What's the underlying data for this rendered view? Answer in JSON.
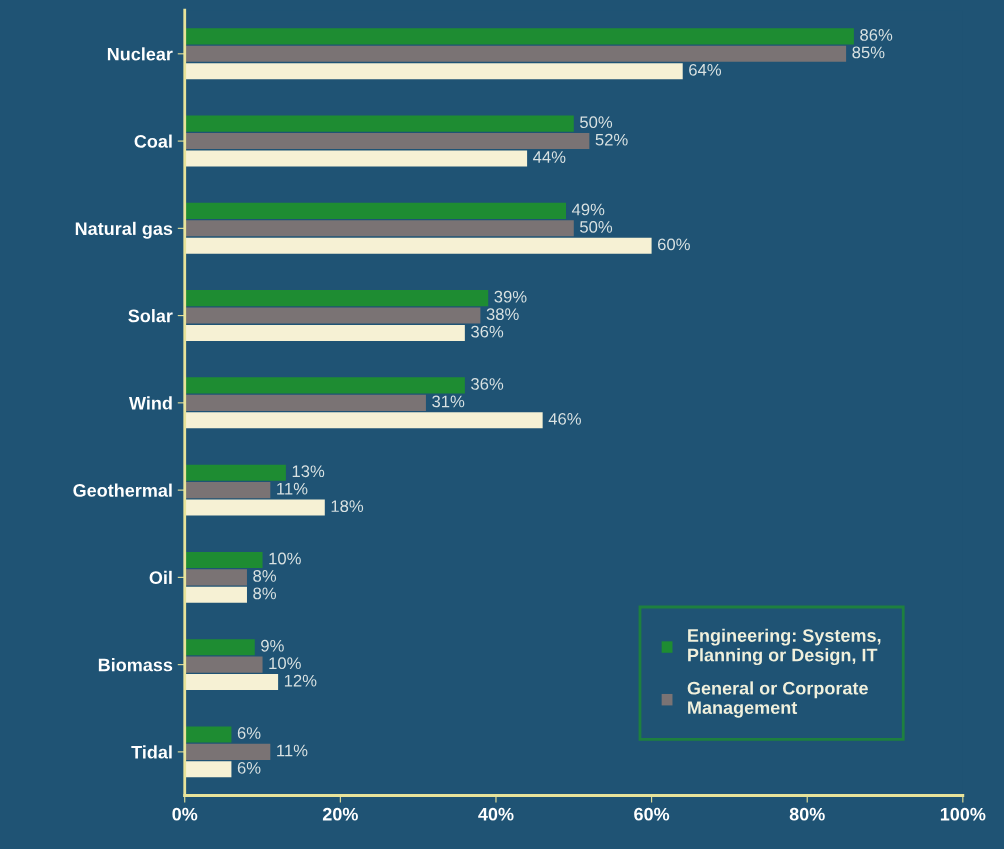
{
  "chart_data": {
    "type": "bar",
    "orientation": "horizontal",
    "categories": [
      "Nuclear",
      "Coal",
      "Natural gas",
      "Solar",
      "Wind",
      "Geothermal",
      "Oil",
      "Biomass",
      "Tidal"
    ],
    "series": [
      {
        "name": "Engineering: Systems, Planning or Design, IT",
        "color": "#1e8c32",
        "values": [
          86,
          50,
          49,
          39,
          36,
          13,
          10,
          9,
          6
        ],
        "value_labels": [
          "86%",
          "50%",
          "49%",
          "39%",
          "36%",
          "13%",
          "10%",
          "9%",
          "6%"
        ]
      },
      {
        "name": "General or Corporate Management",
        "color": "#7a7374",
        "values": [
          85,
          52,
          50,
          38,
          31,
          11,
          8,
          10,
          11
        ],
        "value_labels": [
          "85%",
          "52%",
          "50%",
          "38%",
          "31%",
          "11%",
          "8%",
          "10%",
          "11%"
        ]
      },
      {
        "color": "#f6f1d4",
        "values": [
          64,
          44,
          60,
          36,
          46,
          18,
          8,
          12,
          6
        ],
        "value_labels": [
          "64%",
          "44%",
          "60%",
          "36%",
          "46%",
          "18%",
          "8%",
          "12%",
          "6%"
        ]
      }
    ],
    "xlim": [
      0,
      100
    ],
    "xticks": [
      {
        "value": 0,
        "label": "0%"
      },
      {
        "value": 20,
        "label": "20%"
      },
      {
        "value": 40,
        "label": "40%"
      },
      {
        "value": 60,
        "label": "60%"
      },
      {
        "value": 80,
        "label": "80%"
      },
      {
        "value": 100,
        "label": "100%"
      }
    ],
    "grid": false,
    "legend": "bottom right"
  }
}
